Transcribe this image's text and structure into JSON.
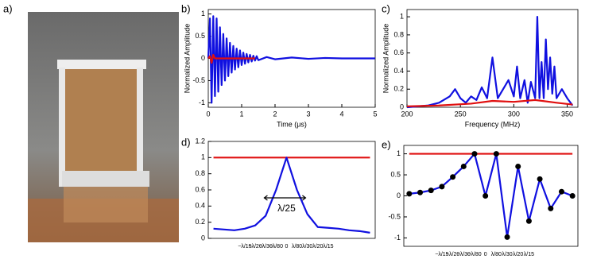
{
  "photo_panel_label": "a)",
  "chart_data": [
    {
      "type": "line",
      "panel_label": "b)",
      "x_label": "Time (μs)",
      "y_label": "Normalized Amplitude",
      "xlim": [
        0,
        5
      ],
      "xticks": [
        0,
        1,
        2,
        3,
        4,
        5
      ],
      "ylim": [
        -1.1,
        1.1
      ],
      "yticks": [
        -1,
        -0.5,
        0,
        0.5,
        1
      ],
      "series": [
        {
          "color": "#1010e0",
          "x": [
            0,
            0.05,
            0.1,
            0.15,
            0.2,
            0.25,
            0.3,
            0.35,
            0.4,
            0.45,
            0.5,
            0.55,
            0.6,
            0.65,
            0.7,
            0.75,
            0.8,
            0.85,
            0.9,
            0.95,
            1,
            1.05,
            1.1,
            1.15,
            1.2,
            1.25,
            1.3,
            1.35,
            1.4,
            1.45,
            1.5,
            1.75,
            2,
            2.5,
            3,
            3.5,
            4,
            4.5,
            5
          ],
          "values": [
            0,
            0.9,
            -1,
            0.95,
            -0.85,
            0.9,
            -0.75,
            0.7,
            -0.6,
            0.55,
            -0.5,
            0.45,
            -0.4,
            0.35,
            -0.32,
            0.28,
            -0.25,
            0.22,
            -0.2,
            0.18,
            -0.15,
            0.13,
            -0.12,
            0.1,
            -0.09,
            0.08,
            -0.07,
            0.06,
            -0.05,
            0.05,
            -0.04,
            0.03,
            -0.02,
            0.02,
            -0.01,
            0.01,
            0,
            0,
            0
          ]
        },
        {
          "color": "#e01010",
          "x": [
            0,
            0.05,
            0.1,
            0.15,
            0.2,
            0.5,
            1,
            1.4
          ],
          "values": [
            0,
            0.05,
            -0.1,
            0.08,
            0,
            0,
            0,
            0
          ]
        }
      ]
    },
    {
      "type": "line",
      "panel_label": "c)",
      "x_label": "Frequency (MHz)",
      "y_label": "Normalized Amplitude",
      "xlim": [
        200,
        360
      ],
      "xticks": [
        200,
        250,
        300,
        350
      ],
      "ylim": [
        0,
        1.08
      ],
      "yticks": [
        0,
        0.2,
        0.4,
        0.6,
        0.8,
        1
      ],
      "series": [
        {
          "color": "#1010e0",
          "x": [
            200,
            210,
            220,
            230,
            240,
            245,
            250,
            255,
            260,
            265,
            270,
            275,
            280,
            285,
            290,
            295,
            300,
            303,
            306,
            310,
            313,
            316,
            320,
            322,
            324,
            326,
            328,
            330,
            332,
            334,
            336,
            338,
            340,
            345,
            350,
            355
          ],
          "values": [
            0,
            0.01,
            0.02,
            0.05,
            0.12,
            0.2,
            0.1,
            0.05,
            0.12,
            0.08,
            0.22,
            0.1,
            0.55,
            0.1,
            0.2,
            0.3,
            0.12,
            0.45,
            0.1,
            0.3,
            0.05,
            0.28,
            0.1,
            1.0,
            0.1,
            0.5,
            0.1,
            0.75,
            0.2,
            0.55,
            0.15,
            0.45,
            0.1,
            0.2,
            0.1,
            0.02
          ]
        },
        {
          "color": "#e01010",
          "x": [
            200,
            230,
            260,
            280,
            300,
            320,
            340,
            355
          ],
          "values": [
            0.01,
            0.02,
            0.04,
            0.07,
            0.06,
            0.08,
            0.05,
            0.03
          ]
        }
      ]
    },
    {
      "type": "line",
      "panel_label": "d)",
      "annotation": "λ/25",
      "categories": [
        null,
        null,
        null,
        "−λ/15",
        "−λ/20",
        "−λ/30",
        "−λ/80",
        "0",
        "λ/80",
        "λ/30",
        "λ/20",
        "λ/15",
        null,
        null,
        null,
        null
      ],
      "ylim": [
        0,
        1.2
      ],
      "yticks": [
        0,
        0.2,
        0.4,
        0.6,
        0.8,
        1,
        1.2
      ],
      "series": [
        {
          "color": "#e01010",
          "values": [
            1,
            1,
            1,
            1,
            1,
            1,
            1,
            1,
            1,
            1,
            1,
            1,
            1,
            1,
            1,
            1
          ]
        },
        {
          "color": "#1010e0",
          "values": [
            0.12,
            0.11,
            0.1,
            0.12,
            0.16,
            0.28,
            0.6,
            1.0,
            0.6,
            0.3,
            0.14,
            0.13,
            0.12,
            0.1,
            0.09,
            0.07
          ]
        }
      ]
    },
    {
      "type": "line",
      "panel_label": "e)",
      "markers": true,
      "categories": [
        null,
        null,
        null,
        "−λ/15",
        "−λ/20",
        "−λ/30",
        "−λ/80",
        "0",
        "λ/80",
        "λ/30",
        "λ/20",
        "λ/15",
        null,
        null,
        null,
        null
      ],
      "ylim": [
        -1.2,
        1.2
      ],
      "yticks": [
        -1,
        -0.5,
        0,
        0.5,
        1
      ],
      "series": [
        {
          "color": "#e01010",
          "values": [
            1,
            1,
            1,
            1,
            1,
            1,
            1,
            1,
            1,
            1,
            1,
            1,
            1,
            1,
            1,
            1
          ]
        },
        {
          "color": "#1010e0",
          "values": [
            0.05,
            0.08,
            0.13,
            0.22,
            0.45,
            0.7,
            1.0,
            0,
            1.0,
            -0.98,
            0.7,
            -0.6,
            0.4,
            -0.3,
            0.1,
            0
          ]
        }
      ]
    }
  ]
}
